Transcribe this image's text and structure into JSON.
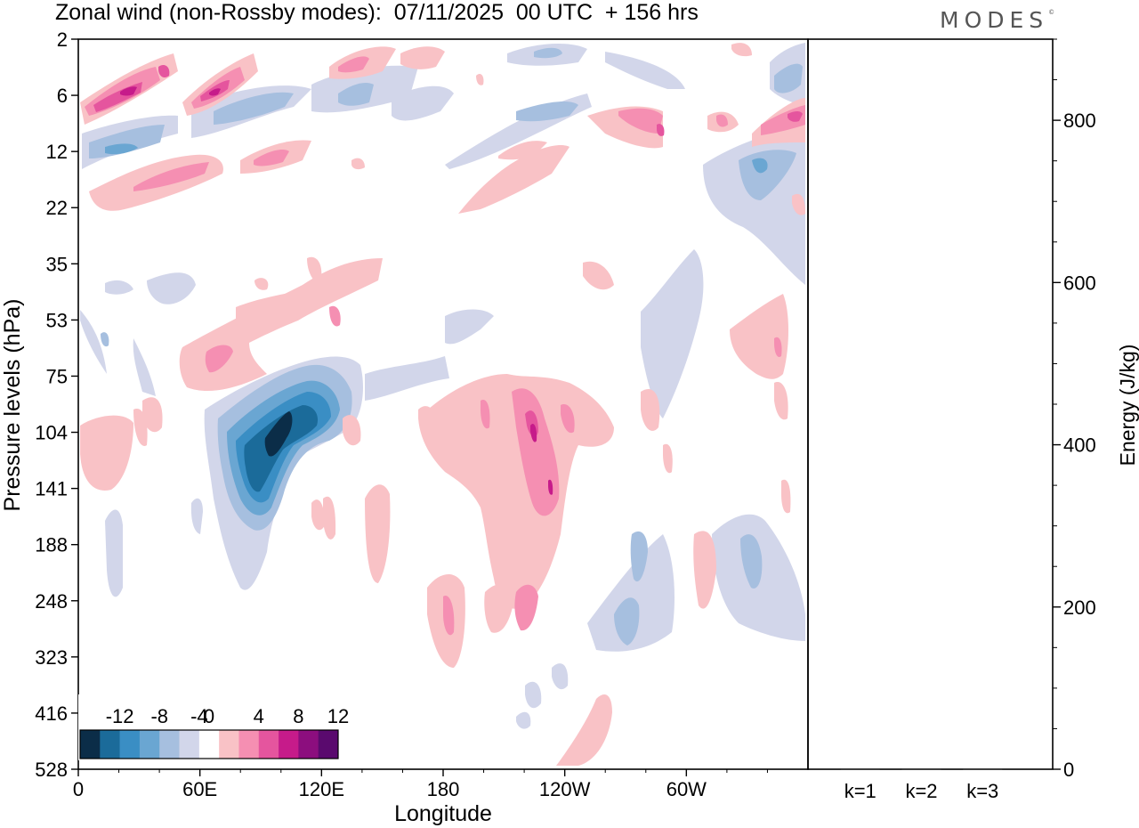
{
  "header": {
    "title": "Zonal wind (non-Rossby modes):  07/11/2025  00 UTC  + 156 hrs",
    "logo_text": "MODES",
    "logo_mark": "©"
  },
  "chart_data": [
    {
      "type": "heatmap",
      "title": "Zonal wind (non-Rossby modes):  07/11/2025  00 UTC  + 156 hrs",
      "xlabel": "Longitude",
      "ylabel": "Pressure levels (hPa)",
      "x_ticks": [
        "0",
        "60E",
        "120E",
        "180",
        "120W",
        "60W"
      ],
      "x_tick_degrees": [
        0,
        60,
        120,
        180,
        240,
        300
      ],
      "x_range_degrees": [
        0,
        360
      ],
      "y_ticks": [
        "2",
        "6",
        "12",
        "22",
        "35",
        "53",
        "75",
        "104",
        "141",
        "188",
        "248",
        "323",
        "416",
        "528"
      ],
      "colorbar": {
        "labels": [
          "-12",
          "-8",
          "-4",
          "0",
          "4",
          "8",
          "12"
        ],
        "levels": [
          -14,
          -12,
          -10,
          -8,
          -6,
          -4,
          -2,
          2,
          4,
          6,
          8,
          10,
          12,
          14
        ],
        "colors": [
          "#0b2d48",
          "#1b6b9a",
          "#3a8ec4",
          "#6aa6d2",
          "#a6bfdf",
          "#d2d6ea",
          "#ffffff",
          "#f9c2c6",
          "#f58fb2",
          "#e5559e",
          "#c61b8a",
          "#8c0e7e",
          "#5a0a6e"
        ]
      },
      "features": [
        {
          "desc": "strong easterly core",
          "lon": 95,
          "level": "104-141",
          "value": -13
        },
        {
          "desc": "westerly band",
          "lon": 230,
          "level": "104-141",
          "value": 9
        },
        {
          "desc": "westerly band",
          "lon": 55,
          "level": "75",
          "value": 6
        },
        {
          "desc": "westerly upper",
          "lon": 20,
          "level": "6",
          "value": 9
        },
        {
          "desc": "westerly upper",
          "lon": 68,
          "level": "6",
          "value": 8
        },
        {
          "desc": "easterly upper",
          "lon": 335,
          "level": "12-22",
          "value": -7
        },
        {
          "desc": "westerly upper",
          "lon": 350,
          "level": "6-12",
          "value": 6
        },
        {
          "desc": "easterly mid",
          "lon": 330,
          "level": "188-248",
          "value": -5
        },
        {
          "desc": "westerly lower",
          "lon": 250,
          "level": "416-528",
          "value": 3
        }
      ]
    },
    {
      "type": "bar",
      "ylabel": "Energy (J/kg)",
      "categories": [
        "k=1",
        "k=2",
        "k=3"
      ],
      "values": [
        1,
        1,
        1
      ],
      "ylim": [
        0,
        900
      ],
      "y_ticks": [
        "0",
        "200",
        "400",
        "600",
        "800"
      ]
    }
  ]
}
